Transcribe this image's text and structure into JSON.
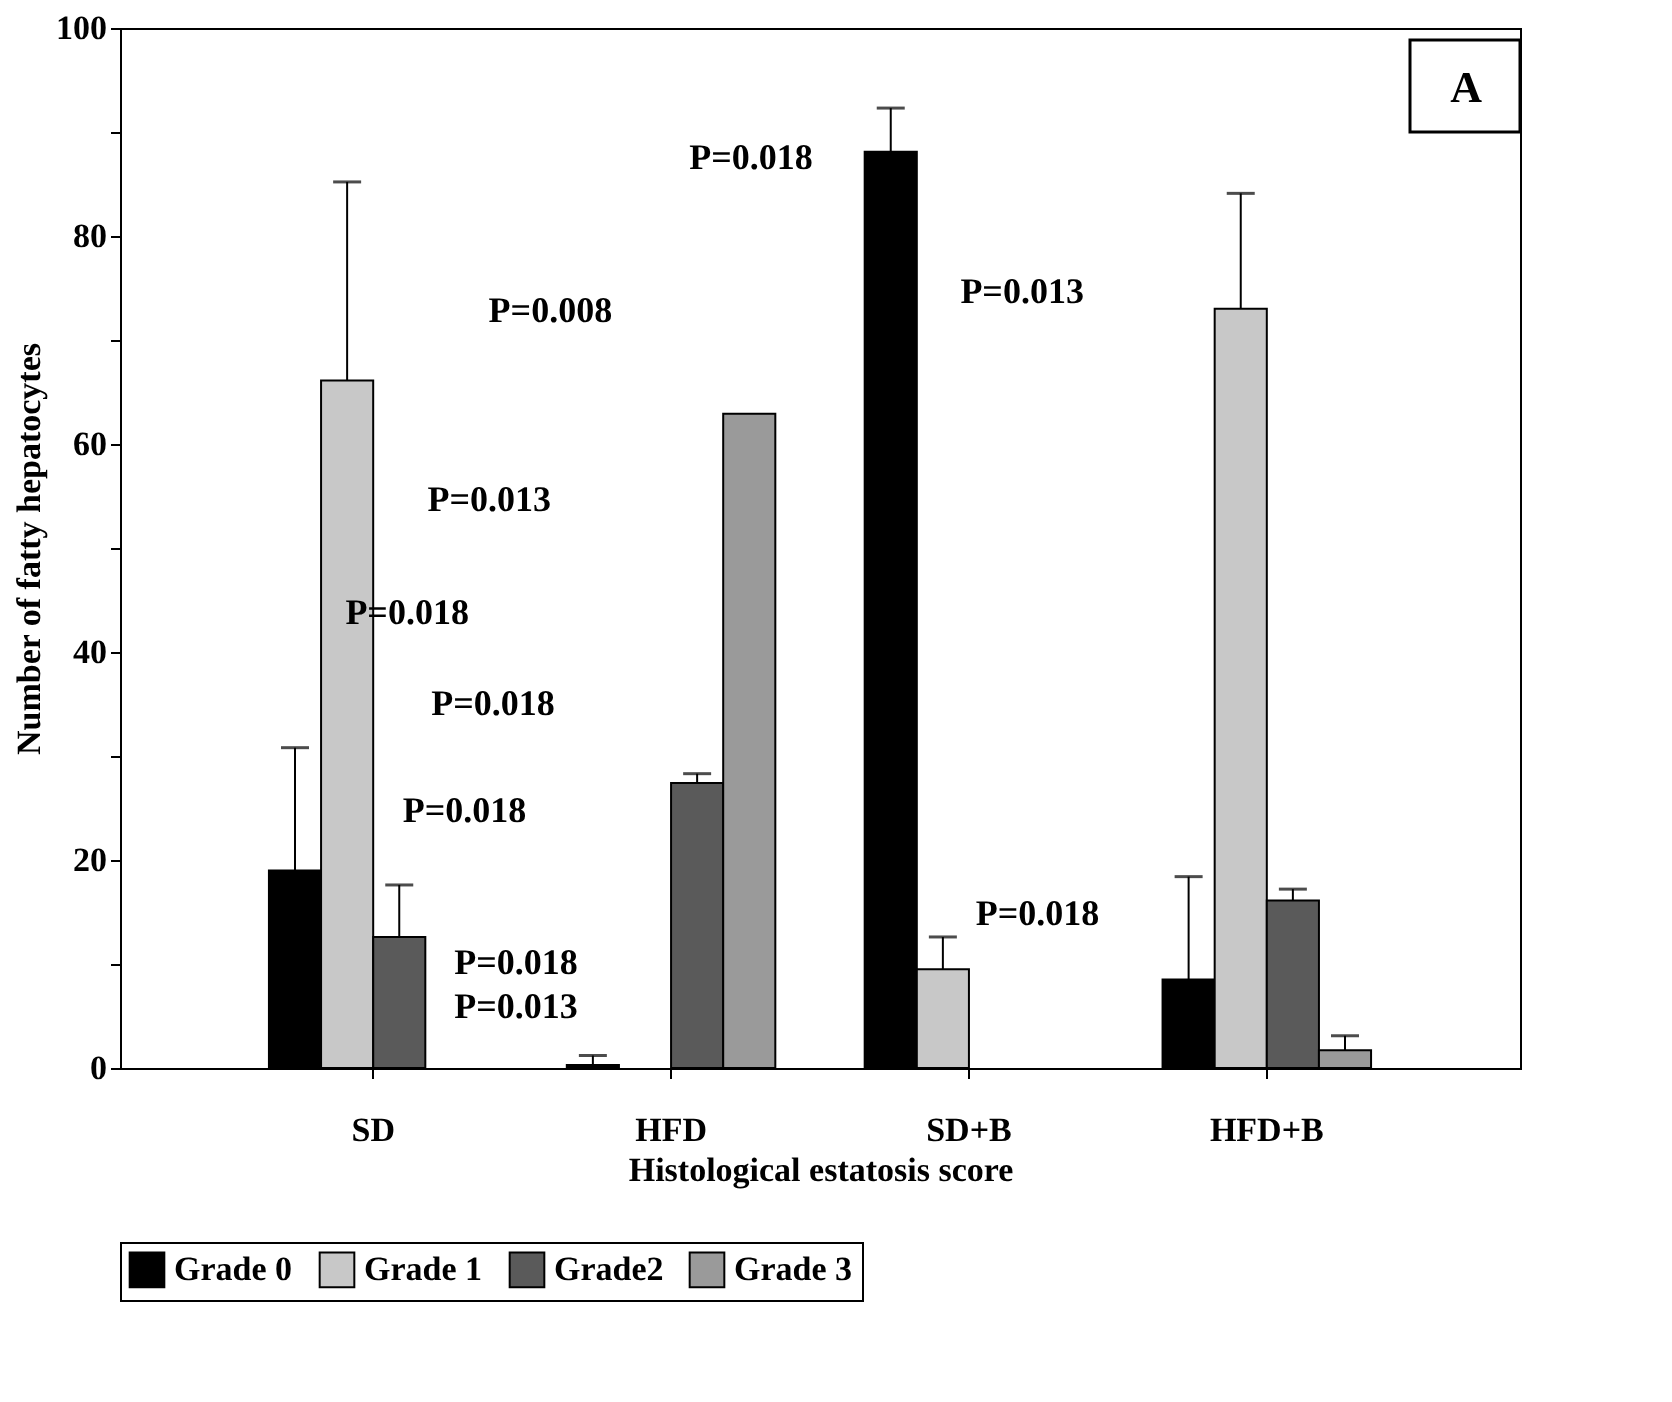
{
  "chart_data": {
    "type": "bar",
    "xlabel": "Histological estatosis score",
    "ylabel": "Number of fatty hepatocytes",
    "categories": [
      "SD",
      "HFD",
      "SD+B",
      "HFD+B"
    ],
    "series": [
      {
        "name": "Grade 0",
        "color": "#000000",
        "values": [
          19.0,
          0.3,
          88.1,
          8.5
        ],
        "errors": [
          11.8,
          0.9,
          4.2,
          9.9
        ]
      },
      {
        "name": "Grade 1",
        "color": "#c8c8c8",
        "values": [
          66.1,
          null,
          9.5,
          73.0
        ],
        "errors": [
          19.1,
          null,
          3.1,
          11.1
        ]
      },
      {
        "name": "Grade2",
        "color": "#5a5a5a",
        "values": [
          12.6,
          27.4,
          null,
          16.1
        ],
        "errors": [
          5.0,
          0.9,
          null,
          1.1
        ]
      },
      {
        "name": "Grade 3",
        "color": "#9a9a9a",
        "values": [
          null,
          62.9,
          null,
          1.7
        ],
        "errors": [
          null,
          null,
          null,
          1.4
        ]
      }
    ],
    "ylim": [
      0,
      100
    ],
    "yticks": [
      0,
      {
        "value": 10,
        "label": null
      },
      20,
      {
        "value": 30,
        "label": null
      },
      40,
      {
        "value": 50,
        "label": null
      },
      60,
      {
        "value": 70,
        "label": null
      },
      80,
      {
        "value": 90,
        "label": null
      },
      100
    ],
    "grid": false,
    "legend": "bottom",
    "annotations": [
      "P=0.018",
      "P=0.013",
      "P=0.008",
      "P=0.013",
      "P=0.018",
      "P=0.018",
      "P=0.018",
      "P=0.018",
      "P=0.018",
      "P=0.013",
      "A"
    ]
  }
}
